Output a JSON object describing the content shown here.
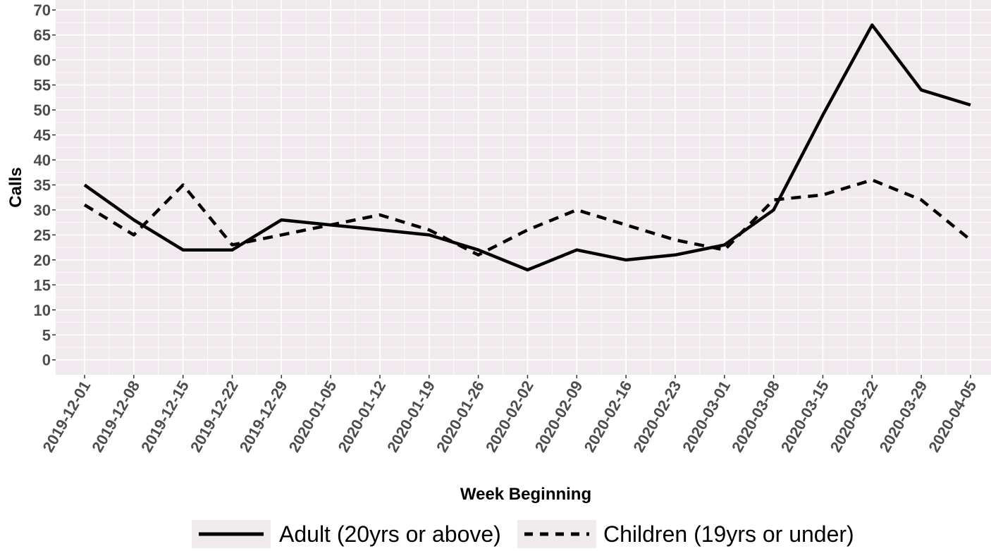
{
  "chart_data": {
    "type": "line",
    "xlabel": "Week Beginning",
    "ylabel": "Calls",
    "ylim": [
      -3,
      72
    ],
    "yticks": [
      0,
      5,
      10,
      15,
      20,
      25,
      30,
      35,
      40,
      45,
      50,
      55,
      60,
      65,
      70
    ],
    "grid": true,
    "legend_position": "bottom",
    "background_color": "#f0eaee",
    "grid_color": "#ffffff",
    "categories": [
      "2019-12-01",
      "2019-12-08",
      "2019-12-15",
      "2019-12-22",
      "2019-12-29",
      "2020-01-05",
      "2020-01-12",
      "2020-01-19",
      "2020-01-26",
      "2020-02-02",
      "2020-02-09",
      "2020-02-16",
      "2020-02-23",
      "2020-03-01",
      "2020-03-08",
      "2020-03-15",
      "2020-03-22",
      "2020-03-29",
      "2020-04-05"
    ],
    "series": [
      {
        "name": "Adult (20yrs or above)",
        "linestyle": "solid",
        "color": "#000000",
        "values": [
          35,
          28,
          22,
          22,
          28,
          27,
          26,
          25,
          22,
          18,
          22,
          20,
          21,
          23,
          30,
          49,
          67,
          54,
          51
        ]
      },
      {
        "name": "Children (19yrs or under)",
        "linestyle": "dashed",
        "color": "#000000",
        "values": [
          31,
          25,
          35,
          23,
          25,
          27,
          29,
          26,
          21,
          26,
          30,
          27,
          24,
          22,
          32,
          33,
          36,
          32,
          24
        ]
      }
    ]
  }
}
